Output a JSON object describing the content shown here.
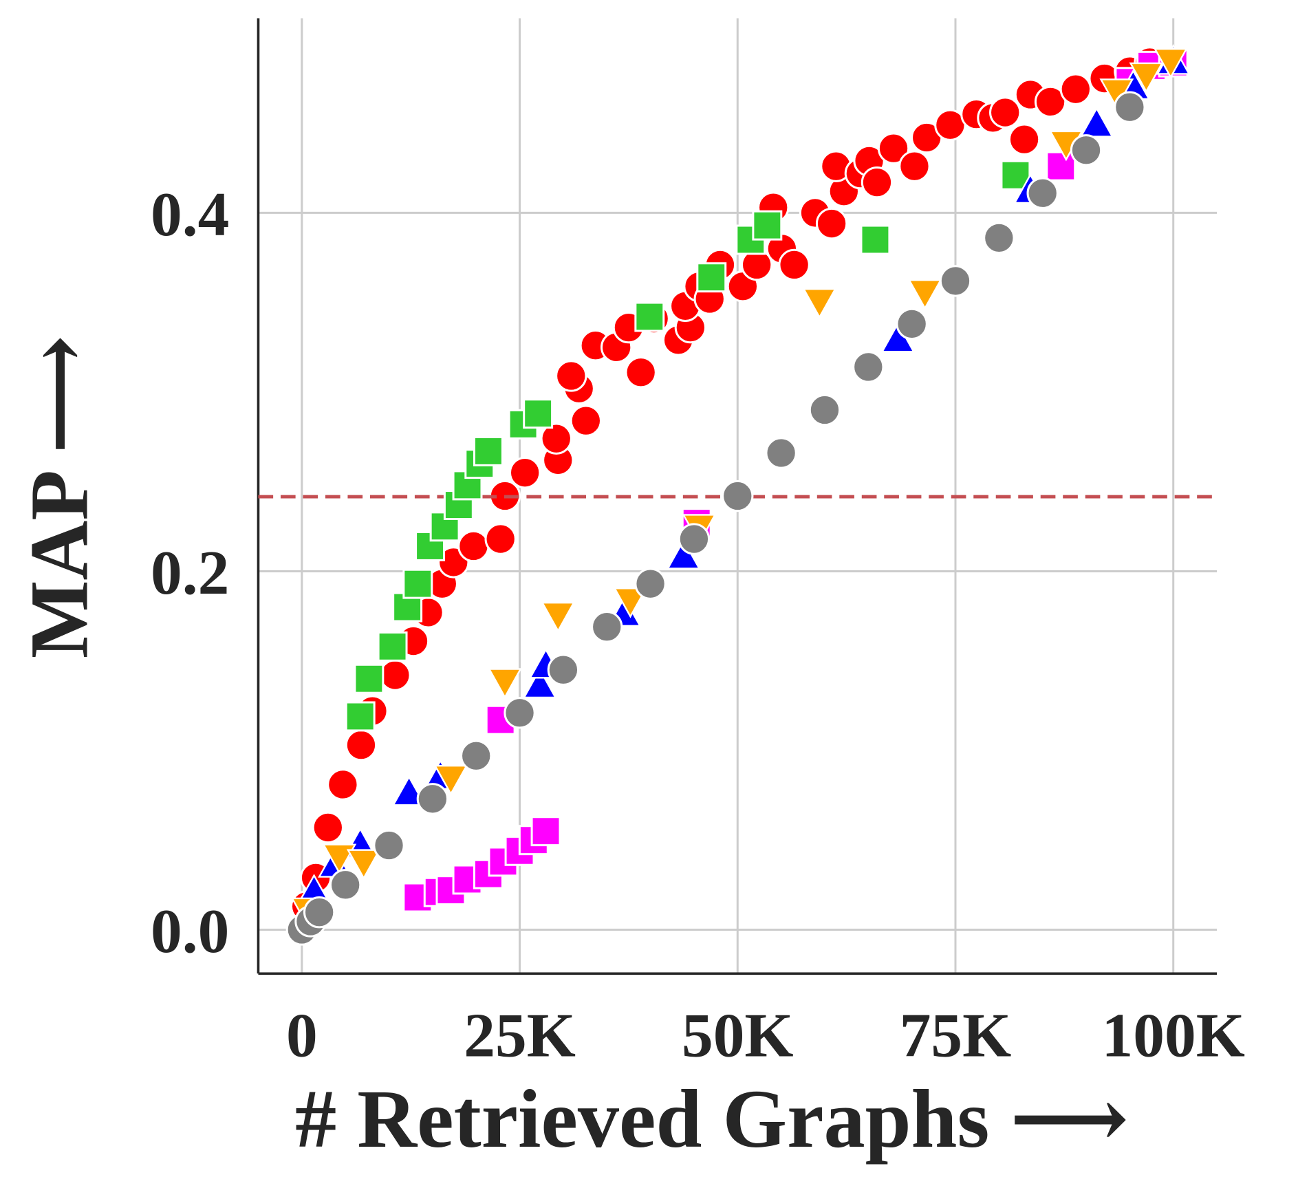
{
  "chart_data": {
    "type": "scatter",
    "x_label": "# Retrieved Graphs ⟶",
    "y_label": "MAP ⟶",
    "xlim": [
      -5000,
      105000
    ],
    "ylim": [
      -0.0245,
      0.5086
    ],
    "xticks": [
      0,
      {
        "value": 25000,
        "label": "25K"
      },
      {
        "value": 50000,
        "label": "50K"
      },
      {
        "value": 75000,
        "label": "75K"
      },
      {
        "value": 100000,
        "label": "100K"
      }
    ],
    "yticks": [
      {
        "value": 0,
        "label": "0.0"
      },
      0.2,
      0.4
    ],
    "grid": true,
    "hline": {
      "value": 0.2416,
      "color": "#c44e52"
    },
    "series": [
      {
        "color": "#ff0000",
        "marker": "circle",
        "x": [
          500,
          1600,
          3000,
          4700,
          6800,
          8100,
          10700,
          12800,
          14500,
          16100,
          17400,
          19700,
          22800,
          23300,
          25600,
          29400,
          29200,
          32600,
          31800,
          30900,
          33700,
          36100,
          38900,
          37500,
          40400,
          43200,
          44600,
          44000,
          45600,
          46800,
          48000,
          50600,
          52200,
          54100,
          55100,
          56500,
          58900,
          60800,
          62200,
          61300,
          64100,
          65100,
          66000,
          67900,
          70300,
          71700,
          74400,
          77400,
          79300,
          80700,
          82900,
          83600,
          85900,
          88800,
          92100,
          95000,
          97300
        ],
        "values": [
          0.013,
          0.029,
          0.057,
          0.081,
          0.103,
          0.122,
          0.142,
          0.161,
          0.177,
          0.193,
          0.205,
          0.214,
          0.218,
          0.242,
          0.255,
          0.262,
          0.274,
          0.284,
          0.302,
          0.309,
          0.326,
          0.325,
          0.311,
          0.336,
          0.341,
          0.329,
          0.336,
          0.348,
          0.359,
          0.352,
          0.371,
          0.359,
          0.371,
          0.403,
          0.38,
          0.371,
          0.4,
          0.394,
          0.412,
          0.426,
          0.422,
          0.429,
          0.417,
          0.436,
          0.426,
          0.442,
          0.449,
          0.455,
          0.453,
          0.456,
          0.441,
          0.466,
          0.462,
          0.469,
          0.475,
          0.479,
          0.484
        ]
      },
      {
        "color": "#ff00ff",
        "marker": "square",
        "x": [
          13300,
          15700,
          17100,
          19000,
          21400,
          23100,
          25000,
          26600,
          28000,
          22800,
          45300,
          87100,
          95000,
          97500,
          100000
        ],
        "values": [
          0.018,
          0.021,
          0.022,
          0.028,
          0.031,
          0.038,
          0.044,
          0.05,
          0.055,
          0.117,
          0.227,
          0.426,
          0.473,
          0.482,
          0.484
        ]
      },
      {
        "color": "#32cd32",
        "marker": "square",
        "x": [
          6700,
          7700,
          10400,
          12100,
          13300,
          14700,
          16400,
          18000,
          19000,
          20400,
          21400,
          25400,
          27100,
          39900,
          47000,
          51500,
          53400,
          65800,
          81900
        ],
        "values": [
          0.119,
          0.14,
          0.158,
          0.18,
          0.193,
          0.214,
          0.225,
          0.237,
          0.248,
          0.26,
          0.267,
          0.282,
          0.288,
          0.342,
          0.364,
          0.385,
          0.393,
          0.385,
          0.421
        ]
      },
      {
        "color": "#0000ff",
        "marker": "triangle-up",
        "x": [
          1400,
          3800,
          6700,
          12300,
          15900,
          27300,
          28000,
          37000,
          43800,
          68400,
          83600,
          91200,
          95400,
          100000
        ],
        "values": [
          0.021,
          0.036,
          0.047,
          0.076,
          0.085,
          0.136,
          0.147,
          0.176,
          0.208,
          0.329,
          0.412,
          0.449,
          0.47,
          0.484
        ]
      },
      {
        "color": "#ffa500",
        "marker": "triangle-down",
        "x": [
          700,
          4300,
          7100,
          17100,
          23300,
          29400,
          37700,
          45600,
          59400,
          71500,
          87700,
          93500,
          96900,
          99700
        ],
        "values": [
          0.011,
          0.041,
          0.038,
          0.085,
          0.139,
          0.176,
          0.184,
          0.225,
          0.351,
          0.356,
          0.439,
          0.468,
          0.477,
          0.485
        ]
      },
      {
        "color": "#808080",
        "marker": "circle",
        "x": [
          0,
          1000,
          2000,
          5000,
          10000,
          15000,
          20000,
          25000,
          30000,
          35000,
          40000,
          45000,
          50000,
          55000,
          60000,
          65000,
          70000,
          75000,
          80000,
          85000,
          90000,
          95000
        ],
        "values": [
          0,
          0.0046,
          0.0097,
          0.025,
          0.047,
          0.073,
          0.097,
          0.121,
          0.145,
          0.169,
          0.193,
          0.218,
          0.242,
          0.266,
          0.29,
          0.314,
          0.338,
          0.362,
          0.386,
          0.411,
          0.435,
          0.459
        ]
      }
    ]
  }
}
